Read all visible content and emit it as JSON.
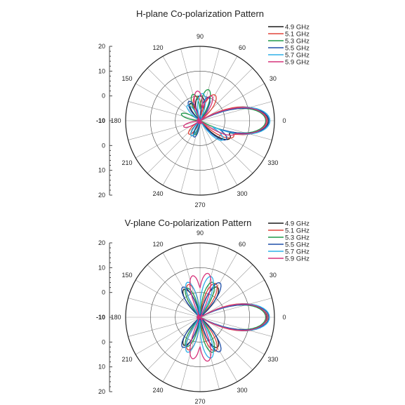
{
  "chart_data": [
    {
      "type": "polar-line",
      "title": "H-plane Co-polarization Pattern",
      "radial_tick_labels_top": [
        "20",
        "10",
        "0"
      ],
      "radial_tick_labels_center": "-10",
      "radial_tick_labels_bottom": [
        "0",
        "10",
        "20"
      ],
      "angle_labels": [
        {
          "angle": 0,
          "label": "0"
        },
        {
          "angle": 30,
          "label": "30"
        },
        {
          "angle": 60,
          "label": "60"
        },
        {
          "angle": 90,
          "label": "90"
        },
        {
          "angle": 120,
          "label": "120"
        },
        {
          "angle": 150,
          "label": "150"
        },
        {
          "angle": 180,
          "label": "180"
        },
        {
          "angle": 210,
          "label": "210"
        },
        {
          "angle": 240,
          "label": "240"
        },
        {
          "angle": 270,
          "label": "270"
        },
        {
          "angle": 300,
          "label": "300"
        },
        {
          "angle": 330,
          "label": "330"
        }
      ],
      "r_range": [
        -10,
        20
      ],
      "grid_rings": [
        0,
        10
      ],
      "spoke_step_deg": 15,
      "legend_position": "top-right",
      "series": [
        {
          "name": "4.9 GHz",
          "color": "#1a1a1a",
          "lobes": [
            {
              "dir": 0,
              "peak": 17.5,
              "width": 20
            },
            {
              "dir": 90,
              "peak": 0,
              "width": 30
            },
            {
              "dir": 120,
              "peak": -2,
              "width": 20
            },
            {
              "dir": 240,
              "peak": -3,
              "width": 25
            },
            {
              "dir": 330,
              "peak": 4,
              "width": 20
            }
          ]
        },
        {
          "name": "5.1 GHz",
          "color": "#e0453a",
          "lobes": [
            {
              "dir": 0,
              "peak": 17.0,
              "width": 21
            },
            {
              "dir": 60,
              "peak": 2,
              "width": 22
            },
            {
              "dir": 100,
              "peak": 0,
              "width": 25
            },
            {
              "dir": 230,
              "peak": -3,
              "width": 25
            },
            {
              "dir": 335,
              "peak": 5,
              "width": 18
            }
          ]
        },
        {
          "name": "5.3 GHz",
          "color": "#1f9a4a",
          "lobes": [
            {
              "dir": 0,
              "peak": 16.5,
              "width": 19
            },
            {
              "dir": 75,
              "peak": 3,
              "width": 18
            },
            {
              "dir": 105,
              "peak": 1,
              "width": 20
            },
            {
              "dir": 160,
              "peak": -2,
              "width": 20
            },
            {
              "dir": 250,
              "peak": -4,
              "width": 22
            }
          ]
        },
        {
          "name": "5.5 GHz",
          "color": "#1f4fa8",
          "lobes": [
            {
              "dir": 0,
              "peak": 17.8,
              "width": 18
            },
            {
              "dir": 70,
              "peak": 0,
              "width": 22
            },
            {
              "dir": 120,
              "peak": -1,
              "width": 22
            },
            {
              "dir": 250,
              "peak": -3,
              "width": 22
            },
            {
              "dir": 325,
              "peak": 3,
              "width": 18
            }
          ]
        },
        {
          "name": "5.7 GHz",
          "color": "#2fb0e8",
          "lobes": [
            {
              "dir": 0,
              "peak": 18.2,
              "width": 19
            },
            {
              "dir": 85,
              "peak": 1,
              "width": 22
            },
            {
              "dir": 130,
              "peak": -2,
              "width": 22
            },
            {
              "dir": 240,
              "peak": -3,
              "width": 22
            },
            {
              "dir": 320,
              "peak": 2,
              "width": 18
            }
          ]
        },
        {
          "name": "5.9 GHz",
          "color": "#d6327a",
          "lobes": [
            {
              "dir": 0,
              "peak": 16.8,
              "width": 20
            },
            {
              "dir": 65,
              "peak": 1,
              "width": 20
            },
            {
              "dir": 95,
              "peak": 2,
              "width": 20
            },
            {
              "dir": 200,
              "peak": -3,
              "width": 22
            },
            {
              "dir": 340,
              "peak": 5,
              "width": 16
            }
          ]
        }
      ]
    },
    {
      "type": "polar-line",
      "title": "V-plane Co-polarization Pattern",
      "radial_tick_labels_top": [
        "20",
        "10",
        "0"
      ],
      "radial_tick_labels_center": "-10",
      "radial_tick_labels_bottom": [
        "0",
        "10",
        "20"
      ],
      "angle_labels": [
        {
          "angle": 0,
          "label": "0"
        },
        {
          "angle": 30,
          "label": "30"
        },
        {
          "angle": 60,
          "label": "60"
        },
        {
          "angle": 90,
          "label": "90"
        },
        {
          "angle": 120,
          "label": "120"
        },
        {
          "angle": 150,
          "label": "150"
        },
        {
          "angle": 180,
          "label": "180"
        },
        {
          "angle": 210,
          "label": "210"
        },
        {
          "angle": 240,
          "label": "240"
        },
        {
          "angle": 270,
          "label": "270"
        },
        {
          "angle": 300,
          "label": "300"
        },
        {
          "angle": 330,
          "label": "330"
        }
      ],
      "r_range": [
        -10,
        20
      ],
      "grid_rings": [
        0,
        10
      ],
      "spoke_step_deg": 15,
      "legend_position": "top-right",
      "series": [
        {
          "name": "4.9 GHz",
          "color": "#1a1a1a",
          "lobes": [
            {
              "dir": 0,
              "peak": 17.0,
              "width": 19
            },
            {
              "dir": 60,
              "peak": 4,
              "width": 18
            },
            {
              "dir": 120,
              "peak": 3,
              "width": 18
            },
            {
              "dir": 240,
              "peak": 3,
              "width": 18
            },
            {
              "dir": 300,
              "peak": 4,
              "width": 18
            }
          ]
        },
        {
          "name": "5.1 GHz",
          "color": "#e0453a",
          "lobes": [
            {
              "dir": 0,
              "peak": 17.5,
              "width": 20
            },
            {
              "dir": 65,
              "peak": 5,
              "width": 17
            },
            {
              "dir": 110,
              "peak": 4,
              "width": 17
            },
            {
              "dir": 250,
              "peak": 4,
              "width": 17
            },
            {
              "dir": 295,
              "peak": 5,
              "width": 17
            }
          ]
        },
        {
          "name": "5.3 GHz",
          "color": "#1f9a4a",
          "lobes": [
            {
              "dir": 0,
              "peak": 16.5,
              "width": 19
            },
            {
              "dir": 70,
              "peak": 5,
              "width": 16
            },
            {
              "dir": 115,
              "peak": 3,
              "width": 17
            },
            {
              "dir": 245,
              "peak": 3,
              "width": 17
            },
            {
              "dir": 290,
              "peak": 5,
              "width": 16
            }
          ]
        },
        {
          "name": "5.5 GHz",
          "color": "#1f4fa8",
          "lobes": [
            {
              "dir": 0,
              "peak": 17.8,
              "width": 18
            },
            {
              "dir": 60,
              "peak": 6,
              "width": 15
            },
            {
              "dir": 120,
              "peak": 4,
              "width": 16
            },
            {
              "dir": 240,
              "peak": 4,
              "width": 16
            },
            {
              "dir": 300,
              "peak": 6,
              "width": 15
            }
          ]
        },
        {
          "name": "5.7 GHz",
          "color": "#2fb0e8",
          "lobes": [
            {
              "dir": 0,
              "peak": 18.0,
              "width": 19
            },
            {
              "dir": 75,
              "peak": 7,
              "width": 15
            },
            {
              "dir": 110,
              "peak": 5,
              "width": 15
            },
            {
              "dir": 250,
              "peak": 5,
              "width": 15
            },
            {
              "dir": 285,
              "peak": 7,
              "width": 15
            }
          ]
        },
        {
          "name": "5.9 GHz",
          "color": "#d6327a",
          "lobes": [
            {
              "dir": 0,
              "peak": 16.8,
              "width": 20
            },
            {
              "dir": 80,
              "peak": 8,
              "width": 14
            },
            {
              "dir": 100,
              "peak": 7,
              "width": 14
            },
            {
              "dir": 260,
              "peak": 7,
              "width": 14
            },
            {
              "dir": 280,
              "peak": 8,
              "width": 14
            }
          ]
        }
      ]
    }
  ]
}
